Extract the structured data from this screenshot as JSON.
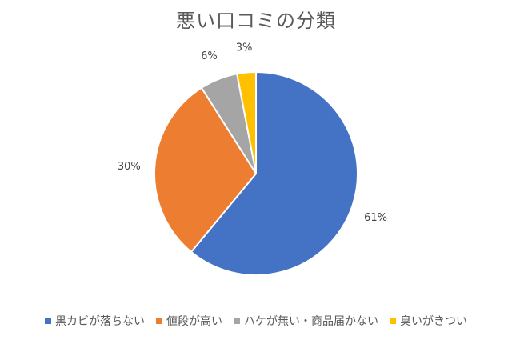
{
  "chart_data": {
    "type": "pie",
    "title": "悪い口コミの分類",
    "categories": [
      "黒カビが落ちない",
      "値段が高い",
      "ハケが無い・商品届かない",
      "臭いがきつい"
    ],
    "values": [
      61,
      30,
      6,
      3
    ],
    "data_labels": [
      "61%",
      "30%",
      "6%",
      "3%"
    ],
    "colors": [
      "#4472C4",
      "#ED7D31",
      "#A5A5A5",
      "#FFC000"
    ],
    "legend_position": "bottom",
    "start_angle": "12 o'clock, clockwise"
  }
}
